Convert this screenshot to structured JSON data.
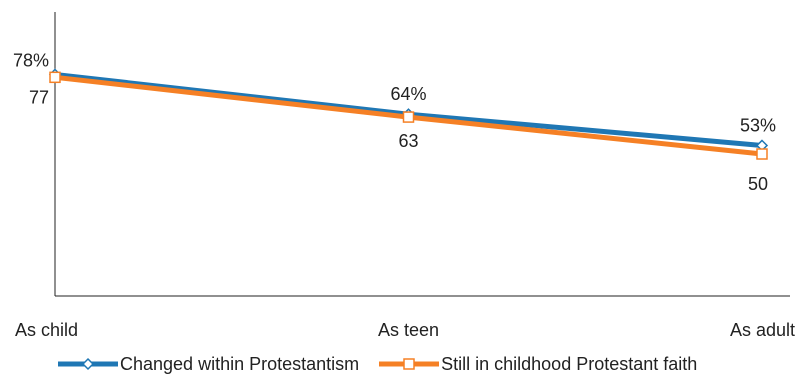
{
  "chart_data": {
    "type": "line",
    "categories": [
      "As child",
      "As teen",
      "As adult"
    ],
    "ylim": [
      0,
      100
    ],
    "grid": false,
    "legend_position": "bottom",
    "series": [
      {
        "name": "Changed within Protestantism",
        "color": "#1f77b4",
        "marker": "diamond",
        "values": [
          78,
          64,
          53
        ],
        "labels": [
          "78%",
          "64%",
          "53%"
        ],
        "label_position": "above"
      },
      {
        "name": "Still in childhood Protestant faith",
        "color": "#f58025",
        "marker": "square",
        "values": [
          77,
          63,
          50
        ],
        "labels": [
          "77",
          "63",
          "50"
        ],
        "label_position": "below"
      }
    ]
  }
}
